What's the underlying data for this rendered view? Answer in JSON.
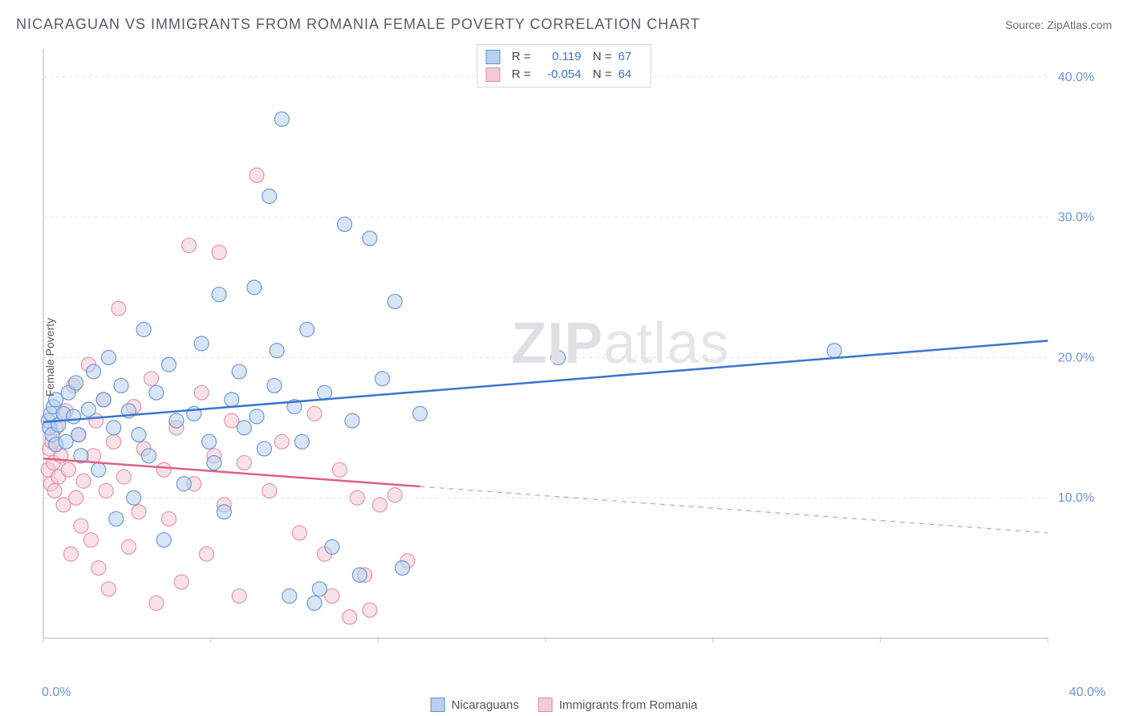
{
  "title": "NICARAGUAN VS IMMIGRANTS FROM ROMANIA FEMALE POVERTY CORRELATION CHART",
  "source": "Source: ZipAtlas.com",
  "ylabel": "Female Poverty",
  "watermark_bold": "ZIP",
  "watermark_rest": "atlas",
  "chart": {
    "type": "scatter-with-regression",
    "background_color": "#ffffff",
    "grid_color": "#e2e4e8",
    "axis_color": "#c8ccd2",
    "xlim": [
      0,
      40
    ],
    "ylim": [
      0,
      42
    ],
    "xtick_positions": [
      0,
      6.67,
      13.33,
      20,
      26.67,
      33.33,
      40
    ],
    "xtick_labels": [
      "0.0%",
      "",
      "",
      "",
      "",
      "",
      "40.0%"
    ],
    "ytick_positions": [
      10,
      20,
      30,
      40
    ],
    "ytick_labels": [
      "10.0%",
      "20.0%",
      "30.0%",
      "40.0%"
    ],
    "marker_radius": 9,
    "marker_opacity": 0.55,
    "series": [
      {
        "name": "Nicaraguans",
        "legend_label": "Nicaraguans",
        "color_fill": "#b7d0ef",
        "color_stroke": "#5f90d3",
        "line_color": "#3b74d1",
        "line_width": 2.5,
        "R": "0.119",
        "N": "67",
        "regression": {
          "x1": 0,
          "y1": 15.4,
          "x2": 40,
          "y2": 21.2,
          "solid_until_x": 40
        },
        "points": [
          [
            0.2,
            15.5
          ],
          [
            0.25,
            15.0
          ],
          [
            0.3,
            16.0
          ],
          [
            0.35,
            14.5
          ],
          [
            0.4,
            16.5
          ],
          [
            0.5,
            13.8
          ],
          [
            0.5,
            17.0
          ],
          [
            0.6,
            15.2
          ],
          [
            0.8,
            16.0
          ],
          [
            0.9,
            14.0
          ],
          [
            1.0,
            17.5
          ],
          [
            1.2,
            15.8
          ],
          [
            1.3,
            18.2
          ],
          [
            1.4,
            14.5
          ],
          [
            1.5,
            13.0
          ],
          [
            1.8,
            16.3
          ],
          [
            2.0,
            19.0
          ],
          [
            2.2,
            12.0
          ],
          [
            2.4,
            17.0
          ],
          [
            2.6,
            20.0
          ],
          [
            2.8,
            15.0
          ],
          [
            2.9,
            8.5
          ],
          [
            3.1,
            18.0
          ],
          [
            3.4,
            16.2
          ],
          [
            3.6,
            10.0
          ],
          [
            3.8,
            14.5
          ],
          [
            4.0,
            22.0
          ],
          [
            4.2,
            13.0
          ],
          [
            4.5,
            17.5
          ],
          [
            4.8,
            7.0
          ],
          [
            5.0,
            19.5
          ],
          [
            5.3,
            15.5
          ],
          [
            5.6,
            11.0
          ],
          [
            6.0,
            16.0
          ],
          [
            6.3,
            21.0
          ],
          [
            6.6,
            14.0
          ],
          [
            6.8,
            12.5
          ],
          [
            7.0,
            24.5
          ],
          [
            7.2,
            9.0
          ],
          [
            7.5,
            17.0
          ],
          [
            7.8,
            19.0
          ],
          [
            8.0,
            15.0
          ],
          [
            8.4,
            25.0
          ],
          [
            8.8,
            13.5
          ],
          [
            9.0,
            31.5
          ],
          [
            9.2,
            18.0
          ],
          [
            9.5,
            37.0
          ],
          [
            9.8,
            3.0
          ],
          [
            10.0,
            16.5
          ],
          [
            10.3,
            14.0
          ],
          [
            10.5,
            22.0
          ],
          [
            10.8,
            2.5
          ],
          [
            11.2,
            17.5
          ],
          [
            11.5,
            6.5
          ],
          [
            12.0,
            29.5
          ],
          [
            12.3,
            15.5
          ],
          [
            12.6,
            4.5
          ],
          [
            13.0,
            28.5
          ],
          [
            13.5,
            18.5
          ],
          [
            14.0,
            24.0
          ],
          [
            14.3,
            5.0
          ],
          [
            15.0,
            16.0
          ],
          [
            20.5,
            20.0
          ],
          [
            31.5,
            20.5
          ],
          [
            11.0,
            3.5
          ],
          [
            9.3,
            20.5
          ],
          [
            8.5,
            15.8
          ]
        ]
      },
      {
        "name": "Immigrants from Romania",
        "legend_label": "Immigrants from Romania",
        "color_fill": "#f4cbd4",
        "color_stroke": "#e38ba2",
        "line_color": "#e05f82",
        "line_width": 2.5,
        "R": "-0.054",
        "N": "64",
        "regression": {
          "x1": 0,
          "y1": 12.8,
          "x2": 40,
          "y2": 7.5,
          "solid_until_x": 15
        },
        "points": [
          [
            0.2,
            12.0
          ],
          [
            0.25,
            13.5
          ],
          [
            0.3,
            11.0
          ],
          [
            0.35,
            14.0
          ],
          [
            0.4,
            12.5
          ],
          [
            0.45,
            10.5
          ],
          [
            0.5,
            15.0
          ],
          [
            0.6,
            11.5
          ],
          [
            0.7,
            13.0
          ],
          [
            0.8,
            9.5
          ],
          [
            0.9,
            16.2
          ],
          [
            1.0,
            12.0
          ],
          [
            1.1,
            6.0
          ],
          [
            1.2,
            18.0
          ],
          [
            1.3,
            10.0
          ],
          [
            1.4,
            14.5
          ],
          [
            1.5,
            8.0
          ],
          [
            1.6,
            11.2
          ],
          [
            1.8,
            19.5
          ],
          [
            1.9,
            7.0
          ],
          [
            2.0,
            13.0
          ],
          [
            2.1,
            15.5
          ],
          [
            2.2,
            5.0
          ],
          [
            2.4,
            17.0
          ],
          [
            2.5,
            10.5
          ],
          [
            2.6,
            3.5
          ],
          [
            2.8,
            14.0
          ],
          [
            3.0,
            23.5
          ],
          [
            3.2,
            11.5
          ],
          [
            3.4,
            6.5
          ],
          [
            3.6,
            16.5
          ],
          [
            3.8,
            9.0
          ],
          [
            4.0,
            13.5
          ],
          [
            4.3,
            18.5
          ],
          [
            4.5,
            2.5
          ],
          [
            4.8,
            12.0
          ],
          [
            5.0,
            8.5
          ],
          [
            5.3,
            15.0
          ],
          [
            5.5,
            4.0
          ],
          [
            5.8,
            28.0
          ],
          [
            6.0,
            11.0
          ],
          [
            6.3,
            17.5
          ],
          [
            6.5,
            6.0
          ],
          [
            6.8,
            13.0
          ],
          [
            7.0,
            27.5
          ],
          [
            7.2,
            9.5
          ],
          [
            7.5,
            15.5
          ],
          [
            7.8,
            3.0
          ],
          [
            8.0,
            12.5
          ],
          [
            8.5,
            33.0
          ],
          [
            9.0,
            10.5
          ],
          [
            9.5,
            14.0
          ],
          [
            10.2,
            7.5
          ],
          [
            10.8,
            16.0
          ],
          [
            11.2,
            6.0
          ],
          [
            11.8,
            12.0
          ],
          [
            12.2,
            1.5
          ],
          [
            12.5,
            10.0
          ],
          [
            13.0,
            2.0
          ],
          [
            13.4,
            9.5
          ],
          [
            14.0,
            10.2
          ],
          [
            14.5,
            5.5
          ],
          [
            12.8,
            4.5
          ],
          [
            11.5,
            3.0
          ]
        ]
      }
    ]
  },
  "legend_top": {
    "r_label": "R =",
    "n_label": "N ="
  }
}
